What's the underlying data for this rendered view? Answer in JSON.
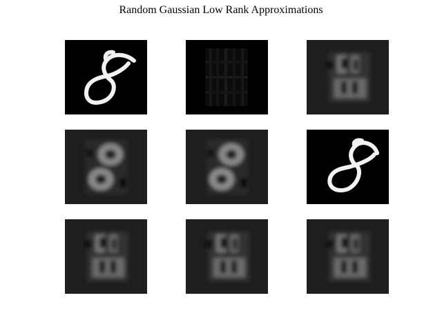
{
  "title": "Random Gaussian Low Rank Approximations",
  "panels": [
    {
      "row": 1,
      "col": 1,
      "content": "clear-digit-8"
    },
    {
      "row": 1,
      "col": 2,
      "content": "faint-grid-pattern"
    },
    {
      "row": 1,
      "col": 3,
      "content": "blurry-approximation"
    },
    {
      "row": 2,
      "col": 1,
      "content": "blurry-digit-8"
    },
    {
      "row": 2,
      "col": 2,
      "content": "blurry-digit-8"
    },
    {
      "row": 2,
      "col": 3,
      "content": "clear-digit-8"
    },
    {
      "row": 3,
      "col": 1,
      "content": "blurry-approximation"
    },
    {
      "row": 3,
      "col": 2,
      "content": "blurry-approximation"
    },
    {
      "row": 3,
      "col": 3,
      "content": "blurry-approximation"
    }
  ],
  "colors": {
    "background": "#ffffff",
    "panel_black": "#000000",
    "panel_dark": "#1e1e1e",
    "digit_white": "#ffffff"
  }
}
